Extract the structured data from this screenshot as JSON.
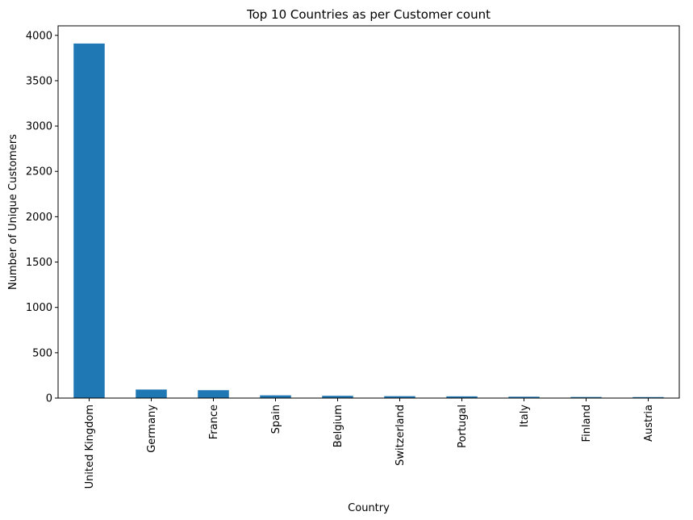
{
  "chart_data": {
    "type": "bar",
    "title": "Top 10 Countries as per Customer count",
    "xlabel": "Country",
    "ylabel": "Number of Unique Customers",
    "categories": [
      "United Kingdom",
      "Germany",
      "France",
      "Spain",
      "Belgium",
      "Switzerland",
      "Portugal",
      "Italy",
      "Finland",
      "Austria"
    ],
    "values": [
      3910,
      94,
      87,
      30,
      25,
      21,
      19,
      15,
      12,
      11
    ],
    "ylim": [
      0,
      4105
    ],
    "yticks": [
      0,
      500,
      1000,
      1500,
      2000,
      2500,
      3000,
      3500,
      4000
    ],
    "grid": false,
    "bar_color": "#1f77b4"
  }
}
